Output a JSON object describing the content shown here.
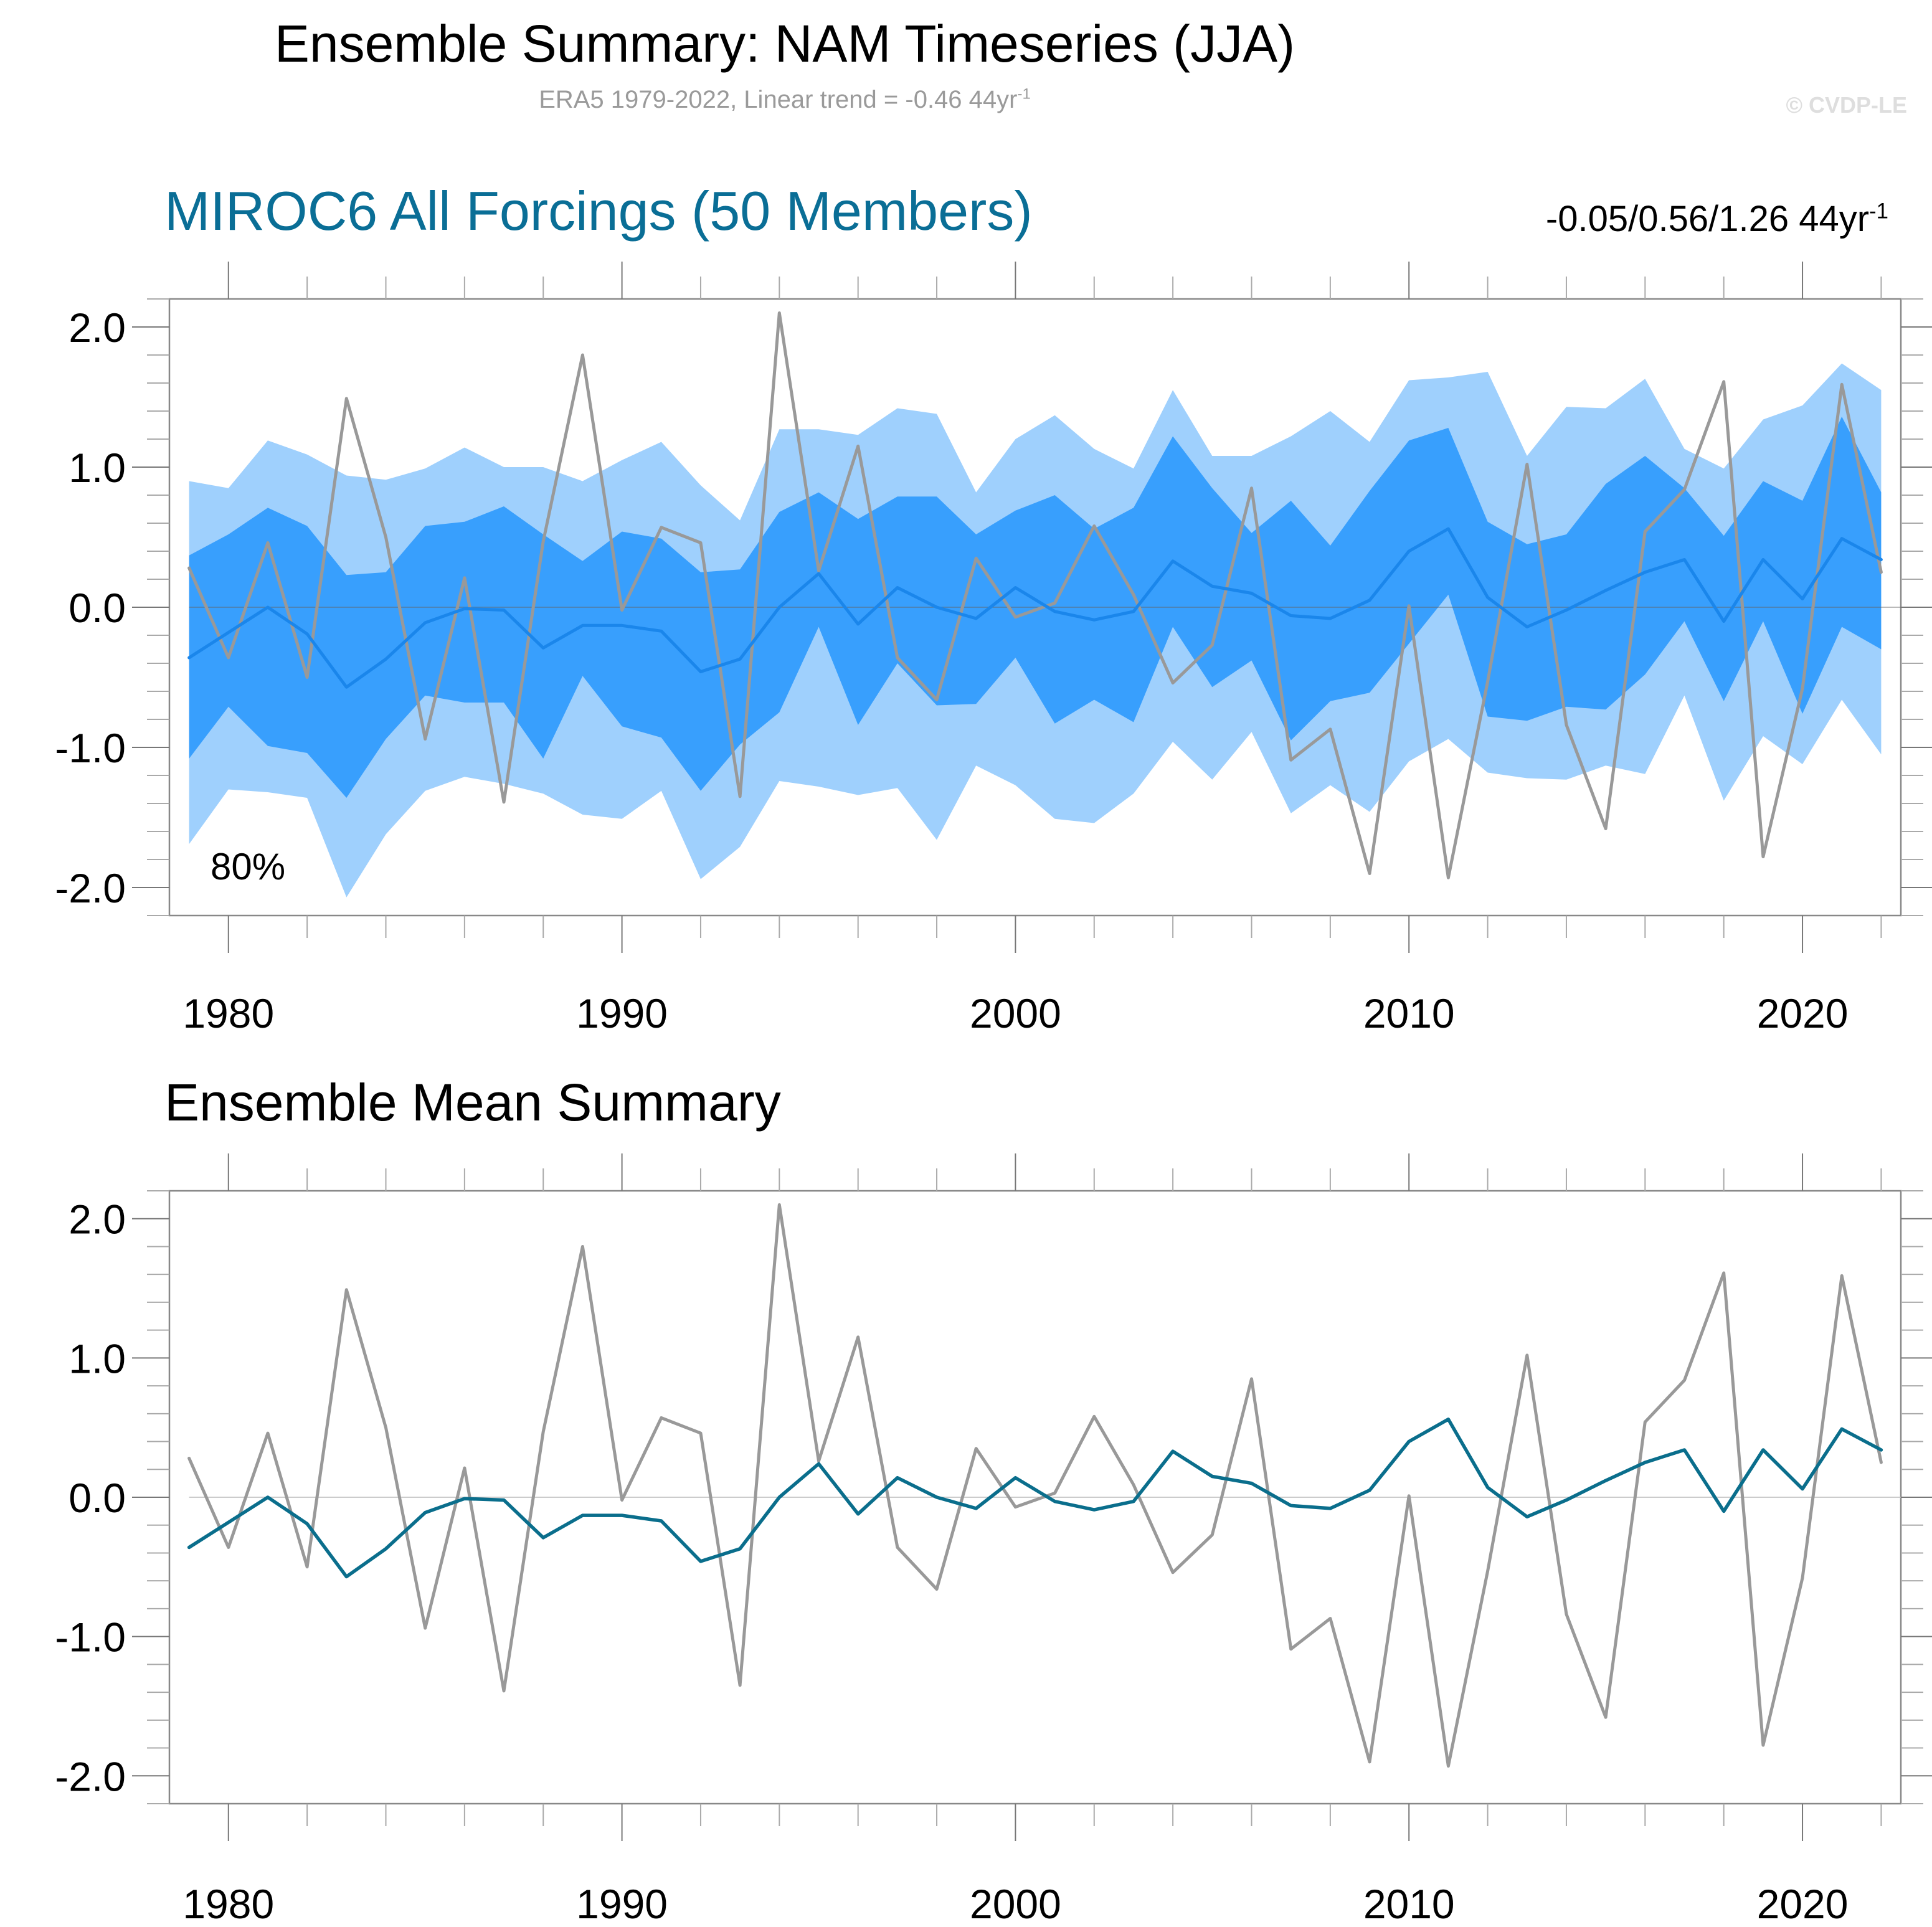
{
  "header": {
    "title": "Ensemble Summary: NAM Timeseries (JJA)",
    "subtitle_main": "ERA5 1979-2022, Linear trend = -0.46 44yr",
    "subtitle_sup": "-1",
    "copyright": "© CVDP-LE"
  },
  "colors": {
    "title_accent": "#0a6e96",
    "band_outer": "#9fd0fd",
    "band_inner": "#389ffd",
    "ensemble_mean_top": "#1a86eb",
    "ensemble_mean_bottom": "#0a6e8c",
    "observations": "#999999"
  },
  "chart_data": [
    {
      "type": "area",
      "title": "MIROC6 All Forcings (50 Members)",
      "trend_label_main": "-0.05/0.56/1.26 44yr",
      "trend_label_sup": "-1",
      "band_label": "80%",
      "xlabel": "",
      "ylabel": "",
      "xlim": [
        1978.5,
        2022.5
      ],
      "ylim": [
        -2.2,
        2.2
      ],
      "x_ticks": [
        1980,
        1990,
        2000,
        2010,
        2020
      ],
      "x_tick_labels": [
        "1980",
        "1990",
        "2000",
        "2010",
        "2020"
      ],
      "y_ticks": [
        2.0,
        1.0,
        0.0,
        -1.0,
        -2.0
      ],
      "y_tick_labels": [
        "2.0",
        "1.0",
        "0.0",
        "-1.0",
        "-2.0"
      ],
      "grid": false,
      "zero_line": true,
      "x": [
        1979,
        1980,
        1981,
        1982,
        1983,
        1984,
        1985,
        1986,
        1987,
        1988,
        1989,
        1990,
        1991,
        1992,
        1993,
        1994,
        1995,
        1996,
        1997,
        1998,
        1999,
        2000,
        2001,
        2002,
        2003,
        2004,
        2005,
        2006,
        2007,
        2008,
        2009,
        2010,
        2011,
        2012,
        2013,
        2014,
        2015,
        2016,
        2017,
        2018,
        2019,
        2020,
        2021,
        2022
      ],
      "series": [
        {
          "name": "Ensemble outer range (upper)",
          "role": "band_outer_upper",
          "values": [
            0.9,
            0.85,
            1.19,
            1.09,
            0.94,
            0.91,
            0.99,
            1.14,
            1.0,
            1.0,
            0.9,
            1.05,
            1.18,
            0.87,
            0.62,
            1.27,
            1.27,
            1.23,
            1.42,
            1.38,
            0.82,
            1.2,
            1.37,
            1.13,
            0.99,
            1.55,
            1.08,
            1.08,
            1.22,
            1.4,
            1.18,
            1.62,
            1.64,
            1.68,
            1.08,
            1.43,
            1.42,
            1.63,
            1.13,
            0.99,
            1.34,
            1.44,
            1.74,
            1.55
          ]
        },
        {
          "name": "Ensemble outer range (lower)",
          "role": "band_outer_lower",
          "values": [
            -1.69,
            -1.3,
            -1.32,
            -1.36,
            -2.07,
            -1.62,
            -1.31,
            -1.21,
            -1.26,
            -1.33,
            -1.48,
            -1.51,
            -1.31,
            -1.94,
            -1.71,
            -1.24,
            -1.28,
            -1.34,
            -1.29,
            -1.66,
            -1.13,
            -1.27,
            -1.51,
            -1.54,
            -1.33,
            -0.96,
            -1.23,
            -0.89,
            -1.47,
            -1.27,
            -1.46,
            -1.1,
            -0.94,
            -1.18,
            -1.22,
            -1.23,
            -1.13,
            -1.19,
            -0.63,
            -1.38,
            -0.92,
            -1.12,
            -0.66,
            -1.05
          ]
        },
        {
          "name": "Ensemble 80% range (upper)",
          "role": "band_inner_upper",
          "values": [
            0.37,
            0.52,
            0.71,
            0.58,
            0.23,
            0.25,
            0.58,
            0.61,
            0.72,
            0.52,
            0.33,
            0.54,
            0.49,
            0.25,
            0.27,
            0.68,
            0.82,
            0.63,
            0.79,
            0.79,
            0.52,
            0.69,
            0.8,
            0.56,
            0.71,
            1.22,
            0.85,
            0.53,
            0.76,
            0.44,
            0.83,
            1.19,
            1.28,
            0.61,
            0.45,
            0.52,
            0.88,
            1.08,
            0.85,
            0.51,
            0.9,
            0.76,
            1.36,
            0.82
          ]
        },
        {
          "name": "Ensemble 80% range (lower)",
          "role": "band_inner_lower",
          "values": [
            -1.08,
            -0.71,
            -0.99,
            -1.04,
            -1.36,
            -0.94,
            -0.63,
            -0.68,
            -0.68,
            -1.08,
            -0.49,
            -0.85,
            -0.93,
            -1.31,
            -0.98,
            -0.75,
            -0.14,
            -0.84,
            -0.4,
            -0.7,
            -0.69,
            -0.36,
            -0.83,
            -0.66,
            -0.82,
            -0.14,
            -0.57,
            -0.38,
            -0.95,
            -0.67,
            -0.61,
            -0.26,
            0.09,
            -0.78,
            -0.81,
            -0.71,
            -0.73,
            -0.48,
            -0.1,
            -0.67,
            -0.1,
            -0.76,
            -0.14,
            -0.3
          ]
        },
        {
          "name": "Ensemble Mean",
          "role": "mean",
          "values": [
            -0.36,
            -0.18,
            0.0,
            -0.19,
            -0.57,
            -0.37,
            -0.11,
            -0.01,
            -0.02,
            -0.29,
            -0.13,
            -0.13,
            -0.17,
            -0.46,
            -0.37,
            0.0,
            0.24,
            -0.12,
            0.14,
            0.0,
            -0.08,
            0.14,
            -0.03,
            -0.09,
            -0.03,
            0.33,
            0.15,
            0.1,
            -0.06,
            -0.08,
            0.05,
            0.4,
            0.56,
            0.07,
            -0.14,
            -0.02,
            0.12,
            0.25,
            0.34,
            -0.1,
            0.34,
            0.06,
            0.49,
            0.34
          ]
        },
        {
          "name": "ERA5",
          "role": "observations",
          "values": [
            0.28,
            -0.36,
            0.46,
            -0.5,
            1.49,
            0.5,
            -0.94,
            0.21,
            -1.39,
            0.47,
            1.8,
            -0.02,
            0.57,
            0.46,
            -1.35,
            2.1,
            0.26,
            1.15,
            -0.36,
            -0.66,
            0.35,
            -0.07,
            0.03,
            0.58,
            0.09,
            -0.54,
            -0.27,
            0.85,
            -1.09,
            -0.87,
            -1.9,
            0.01,
            -1.93,
            -0.53,
            1.02,
            -0.84,
            -1.58,
            0.54,
            0.84,
            1.61,
            -1.78,
            -0.58,
            1.59,
            0.25
          ]
        }
      ]
    },
    {
      "type": "line",
      "title": "Ensemble Mean Summary",
      "xlabel": "",
      "ylabel": "",
      "xlim": [
        1978.5,
        2022.5
      ],
      "ylim": [
        -2.2,
        2.2
      ],
      "x_ticks": [
        1980,
        1990,
        2000,
        2010,
        2020
      ],
      "x_tick_labels": [
        "1980",
        "1990",
        "2000",
        "2010",
        "2020"
      ],
      "y_ticks": [
        2.0,
        1.0,
        0.0,
        -1.0,
        -2.0
      ],
      "y_tick_labels": [
        "2.0",
        "1.0",
        "0.0",
        "-1.0",
        "-2.0"
      ],
      "grid": false,
      "zero_line": true,
      "x": [
        1979,
        1980,
        1981,
        1982,
        1983,
        1984,
        1985,
        1986,
        1987,
        1988,
        1989,
        1990,
        1991,
        1992,
        1993,
        1994,
        1995,
        1996,
        1997,
        1998,
        1999,
        2000,
        2001,
        2002,
        2003,
        2004,
        2005,
        2006,
        2007,
        2008,
        2009,
        2010,
        2011,
        2012,
        2013,
        2014,
        2015,
        2016,
        2017,
        2018,
        2019,
        2020,
        2021,
        2022
      ],
      "series": [
        {
          "name": "ERA5",
          "role": "observations",
          "values": [
            0.28,
            -0.36,
            0.46,
            -0.5,
            1.49,
            0.5,
            -0.94,
            0.21,
            -1.39,
            0.47,
            1.8,
            -0.02,
            0.57,
            0.46,
            -1.35,
            2.1,
            0.26,
            1.15,
            -0.36,
            -0.66,
            0.35,
            -0.07,
            0.03,
            0.58,
            0.09,
            -0.54,
            -0.27,
            0.85,
            -1.09,
            -0.87,
            -1.9,
            0.01,
            -1.93,
            -0.53,
            1.02,
            -0.84,
            -1.58,
            0.54,
            0.84,
            1.61,
            -1.78,
            -0.58,
            1.59,
            0.25
          ]
        },
        {
          "name": "MIROC6 Ensemble Mean",
          "role": "mean",
          "values": [
            -0.36,
            -0.18,
            0.0,
            -0.19,
            -0.57,
            -0.37,
            -0.11,
            -0.01,
            -0.02,
            -0.29,
            -0.13,
            -0.13,
            -0.17,
            -0.46,
            -0.37,
            0.0,
            0.24,
            -0.12,
            0.14,
            0.0,
            -0.08,
            0.14,
            -0.03,
            -0.09,
            -0.03,
            0.33,
            0.15,
            0.1,
            -0.06,
            -0.08,
            0.05,
            0.4,
            0.56,
            0.07,
            -0.14,
            -0.02,
            0.12,
            0.25,
            0.34,
            -0.1,
            0.34,
            0.06,
            0.49,
            0.34
          ]
        }
      ]
    }
  ]
}
